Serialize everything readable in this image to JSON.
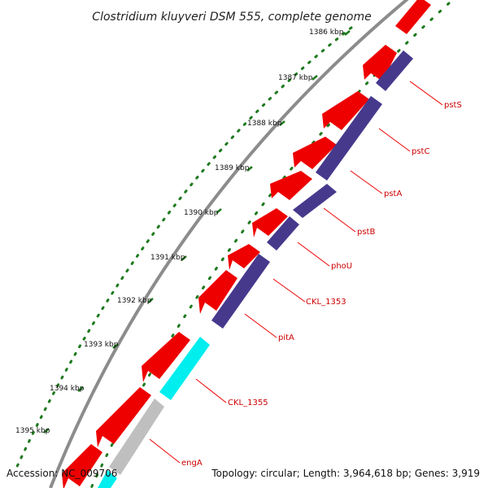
{
  "title": "Clostridium kluyveri DSM 555, complete genome",
  "footer": {
    "accession": "Accession: NC_009706",
    "summary": "Topology: circular; Length: 3,964,618 bp; Genes: 3,919"
  },
  "ticks": [
    {
      "label": "1386 kbp"
    },
    {
      "label": "1387 kbp"
    },
    {
      "label": "1388 kbp"
    },
    {
      "label": "1389 kbp"
    },
    {
      "label": "1390 kbp"
    },
    {
      "label": "1391 kbp"
    },
    {
      "label": "1392 kbp"
    },
    {
      "label": "1393 kbp"
    },
    {
      "label": "1394 kbp"
    },
    {
      "label": "1395 kbp"
    }
  ],
  "genes": [
    {
      "label": "pstS"
    },
    {
      "label": "pstC"
    },
    {
      "label": "pstA"
    },
    {
      "label": "pstB"
    },
    {
      "label": "phoU"
    },
    {
      "label": "CKL_1353"
    },
    {
      "label": "pitA"
    },
    {
      "label": "CKL_1355"
    },
    {
      "label": "engA"
    }
  ],
  "colors": {
    "backbone": "#8c8c8c",
    "forward_cds": "#ee0000",
    "reverse_cds": "#46398c",
    "cyan_cds": "#00eeee",
    "grey_cds": "#bfbfbf",
    "tick_dots": "#1e7a1e",
    "label_lines": "#ee0000"
  }
}
